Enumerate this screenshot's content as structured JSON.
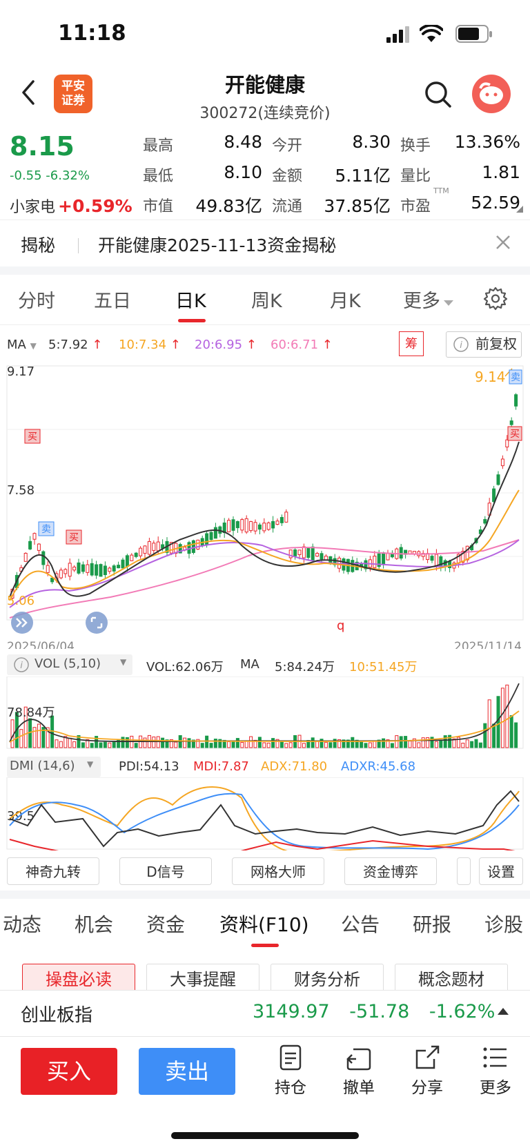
{
  "status_bar": {
    "time": "11:18"
  },
  "header": {
    "logo_line1": "平安",
    "logo_line2": "证券",
    "title": "开能健康",
    "subtitle": "300272(连续竞价)"
  },
  "quote": {
    "price": "8.15",
    "change": "-0.55 -6.32%",
    "sector_label": "小家电",
    "sector_change": "+0.59%",
    "fields": [
      {
        "label": "最高",
        "value": "8.48"
      },
      {
        "label": "今开",
        "value": "8.30"
      },
      {
        "label": "换手",
        "value": "13.36%"
      },
      {
        "label": "最低",
        "value": "8.10"
      },
      {
        "label": "金额",
        "value": "5.11亿"
      },
      {
        "label": "量比",
        "value": "1.81"
      },
      {
        "label": "市值",
        "value": "49.83亿"
      },
      {
        "label": "流通",
        "value": "37.85亿"
      },
      {
        "label": "市盈",
        "value": "52.59",
        "sup": "TTM"
      }
    ]
  },
  "reveal": {
    "label": "揭秘",
    "text": "开能健康2025-11-13资金揭秘"
  },
  "chart_tabs": [
    "分时",
    "五日",
    "日K",
    "周K",
    "月K",
    "更多"
  ],
  "ma": {
    "label": "MA",
    "items": [
      {
        "text": "5:7.92",
        "color": "#333333"
      },
      {
        "text": "10:7.34",
        "color": "#f5a623"
      },
      {
        "text": "20:6.95",
        "color": "#b563e0"
      },
      {
        "text": "60:6.71",
        "color": "#f27ab6"
      }
    ],
    "chip_label": "筹",
    "adjust_label": "前复权"
  },
  "kline": {
    "high_label": "9.17",
    "mid_label": "7.58",
    "low_label": "5.06",
    "max_marker": "9.14",
    "start_date": "2025/06/04",
    "end_date": "2025/11/14",
    "buy_mark": "买",
    "sell_mark": "卖"
  },
  "volume": {
    "label": "VOL (5,10)",
    "vol_text": "VOL:62.06万",
    "ma_label": "MA",
    "ma5_text": "5:84.24万",
    "ma10_text": "10:51.45万",
    "axis_label": "78.84万"
  },
  "dmi": {
    "label": "DMI (14,6)",
    "pdi": "PDI:54.13",
    "mdi": "MDI:7.87",
    "adx": "ADX:71.80",
    "adxr": "ADXR:45.68",
    "axis_label": "39.5"
  },
  "tools": [
    "神奇九转",
    "D信号",
    "网格大师",
    "资金博弈",
    "设置"
  ],
  "f10_tabs": [
    "动态",
    "机会",
    "资金",
    "资料(F10)",
    "公告",
    "研报",
    "诊股"
  ],
  "f10_buttons": [
    "操盘必读",
    "大事提醒",
    "财务分析",
    "概念题材"
  ],
  "index_strip": {
    "name": "创业板指",
    "value": "3149.97",
    "change": "-51.78",
    "pct": "-1.62%"
  },
  "footer": {
    "buy": "买入",
    "sell": "卖出",
    "actions": [
      "持仓",
      "撤单",
      "分享",
      "更多"
    ]
  },
  "colors": {
    "up": "#e8262b",
    "down": "#1a9a4a",
    "buy_bg": "#e82126",
    "sell_bg": "#3e8ef7"
  }
}
